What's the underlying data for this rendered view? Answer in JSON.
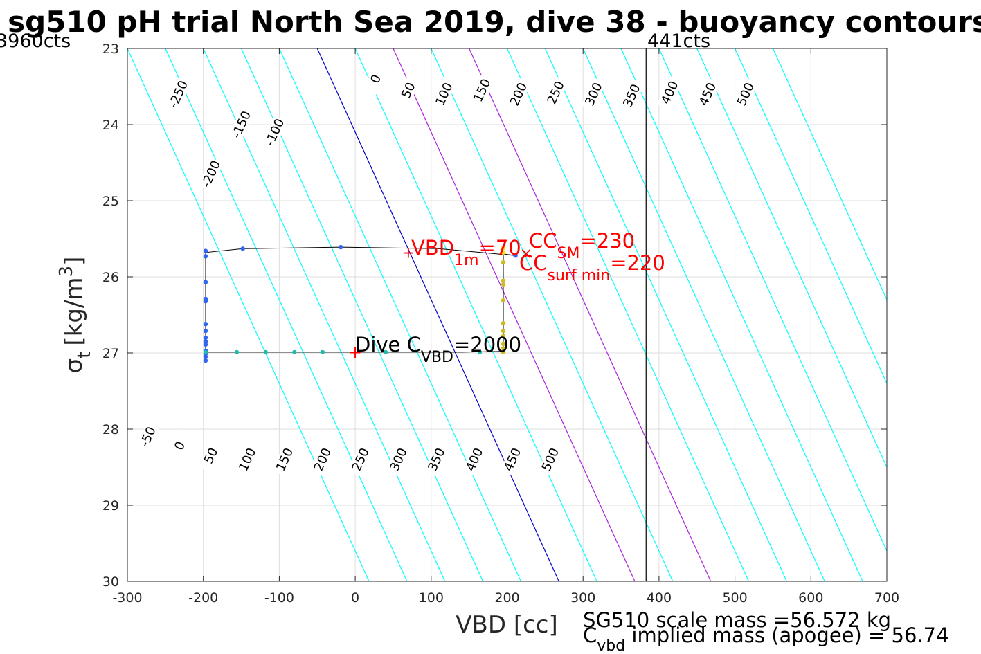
{
  "chart_data": {
    "type": "line",
    "title": "sg510 pH trial North Sea 2019, dive 38 - buoyancy contours",
    "xlabel": "VBD [cc]",
    "ylabel_symbol": "σ",
    "ylabel_sub": "t",
    "ylabel_unit": "[kg/m",
    "ylabel_sup": "3",
    "ylabel_close": "]",
    "xlim": [
      -300,
      700
    ],
    "ylim": [
      23,
      30
    ],
    "y_reversed": true,
    "grid": true,
    "x_ticks": [
      "-300",
      "-200",
      "-100",
      "0",
      "100",
      "200",
      "300",
      "400",
      "500",
      "600",
      "700"
    ],
    "y_ticks": [
      "23",
      "24",
      "25",
      "26",
      "27",
      "28",
      "29",
      "30"
    ],
    "counts_left": "3960cts",
    "counts_right": "441cts",
    "vline_x": 383,
    "contours": [
      {
        "value": -250,
        "x_at_23": -300,
        "color": "#00ffff"
      },
      {
        "value": -200,
        "x_at_23": -250,
        "color": "#00ffff"
      },
      {
        "value": -150,
        "x_at_23": -200,
        "color": "#00ffff"
      },
      {
        "value": -100,
        "x_at_23": -150,
        "color": "#00ffff"
      },
      {
        "value": -50,
        "x_at_23": -100,
        "color": "#00ffff"
      },
      {
        "value": 0,
        "x_at_23": -50,
        "color": "#0000cd"
      },
      {
        "value": 50,
        "x_at_23": 0,
        "color": "#00ffff"
      },
      {
        "value": 100,
        "x_at_23": 50,
        "color": "#aa22dd"
      },
      {
        "value": 150,
        "x_at_23": 100,
        "color": "#00ffff"
      },
      {
        "value": 200,
        "x_at_23": 150,
        "color": "#aa22dd"
      },
      {
        "value": 250,
        "x_at_23": 200,
        "color": "#00ffff"
      },
      {
        "value": 300,
        "x_at_23": 250,
        "color": "#00ffff"
      },
      {
        "value": 350,
        "x_at_23": 300,
        "color": "#00ffff"
      },
      {
        "value": 400,
        "x_at_23": 350,
        "color": "#00ffff"
      },
      {
        "value": 450,
        "x_at_23": 400,
        "color": "#00ffff"
      },
      {
        "value": 500,
        "x_at_23": 450,
        "color": "#00ffff"
      },
      {
        "value": 550,
        "x_at_23": 500,
        "color": "#00ffff"
      },
      {
        "value": 600,
        "x_at_23": 550,
        "color": "#00ffff"
      }
    ],
    "contour_labels": [
      {
        "text": "-250",
        "x": -233,
        "y": 23.6
      },
      {
        "text": "-200",
        "x": -190,
        "y": 24.65
      },
      {
        "text": "-150",
        "x": -150,
        "y": 24.0
      },
      {
        "text": "-100",
        "x": -106,
        "y": 24.1
      },
      {
        "text": "0",
        "x": 27,
        "y": 23.4
      },
      {
        "text": "50",
        "x": 70,
        "y": 23.55
      },
      {
        "text": "100",
        "x": 117,
        "y": 23.6
      },
      {
        "text": "150",
        "x": 167,
        "y": 23.55
      },
      {
        "text": "200",
        "x": 215,
        "y": 23.6
      },
      {
        "text": "250",
        "x": 264,
        "y": 23.58
      },
      {
        "text": "300",
        "x": 314,
        "y": 23.6
      },
      {
        "text": "350",
        "x": 364,
        "y": 23.62
      },
      {
        "text": "400",
        "x": 414,
        "y": 23.58
      },
      {
        "text": "450",
        "x": 464,
        "y": 23.6
      },
      {
        "text": "500",
        "x": 514,
        "y": 23.6
      },
      {
        "text": "-50",
        "x": -273,
        "y": 28.1
      },
      {
        "text": "0",
        "x": -231,
        "y": 28.22
      },
      {
        "text": "50",
        "x": -190,
        "y": 28.35
      },
      {
        "text": "100",
        "x": -142,
        "y": 28.4
      },
      {
        "text": "150",
        "x": -93,
        "y": 28.4
      },
      {
        "text": "200",
        "x": -43,
        "y": 28.4
      },
      {
        "text": "250",
        "x": 7,
        "y": 28.4
      },
      {
        "text": "300",
        "x": 57,
        "y": 28.4
      },
      {
        "text": "350",
        "x": 107,
        "y": 28.4
      },
      {
        "text": "400",
        "x": 157,
        "y": 28.4
      },
      {
        "text": "450",
        "x": 207,
        "y": 28.4
      },
      {
        "text": "500",
        "x": 257,
        "y": 28.4
      }
    ],
    "trajectory": [
      {
        "x": -197,
        "y": 26.99
      },
      {
        "x": -197,
        "y": 26.5
      },
      {
        "x": -197,
        "y": 25.9
      },
      {
        "x": -197,
        "y": 25.68
      },
      {
        "x": -148,
        "y": 25.63
      },
      {
        "x": -19,
        "y": 25.61
      },
      {
        "x": 110,
        "y": 25.63
      },
      {
        "x": 211,
        "y": 25.72
      },
      {
        "x": 195,
        "y": 25.7
      },
      {
        "x": 195,
        "y": 26.1
      },
      {
        "x": 195,
        "y": 26.98
      },
      {
        "x": 140,
        "y": 26.99
      },
      {
        "x": 0,
        "y": 26.99
      },
      {
        "x": -197,
        "y": 26.99
      }
    ],
    "points": [
      {
        "x": -197,
        "y": 25.66,
        "color": "#3366ee"
      },
      {
        "x": -197,
        "y": 25.73,
        "color": "#3366ee"
      },
      {
        "x": -197,
        "y": 26.07,
        "color": "#3366ee"
      },
      {
        "x": -197,
        "y": 26.29,
        "color": "#3366ee"
      },
      {
        "x": -197,
        "y": 26.32,
        "color": "#3366ee"
      },
      {
        "x": -197,
        "y": 26.62,
        "color": "#3366ee"
      },
      {
        "x": -197,
        "y": 26.71,
        "color": "#3366ee"
      },
      {
        "x": -197,
        "y": 26.8,
        "color": "#3366ee"
      },
      {
        "x": -197,
        "y": 26.85,
        "color": "#3366ee"
      },
      {
        "x": -197,
        "y": 26.89,
        "color": "#3366ee"
      },
      {
        "x": -197,
        "y": 26.97,
        "color": "#3366ee"
      },
      {
        "x": -197,
        "y": 27.01,
        "color": "#3366ee"
      },
      {
        "x": -197,
        "y": 27.05,
        "color": "#3366ee"
      },
      {
        "x": -197,
        "y": 27.1,
        "color": "#3366ee"
      },
      {
        "x": -148,
        "y": 25.63,
        "color": "#3366ee"
      },
      {
        "x": -19,
        "y": 25.61,
        "color": "#3366ee"
      },
      {
        "x": 211,
        "y": 25.72,
        "color": "#3366ee"
      },
      {
        "x": -156,
        "y": 26.99,
        "color": "#22bbaa"
      },
      {
        "x": -118,
        "y": 26.99,
        "color": "#22bbaa"
      },
      {
        "x": -80,
        "y": 26.99,
        "color": "#22bbaa"
      },
      {
        "x": -43,
        "y": 26.99,
        "color": "#22bbaa"
      },
      {
        "x": 40,
        "y": 26.99,
        "color": "#22bbaa"
      },
      {
        "x": 164,
        "y": 26.99,
        "color": "#22bbaa"
      },
      {
        "x": -197,
        "y": 26.99,
        "color": "#22bbaa"
      },
      {
        "x": 195,
        "y": 25.62,
        "color": "#ffdd00"
      },
      {
        "x": 195,
        "y": 25.68,
        "color": "#ffdd00"
      },
      {
        "x": 195,
        "y": 25.81,
        "color": "#ccbb22"
      },
      {
        "x": 195,
        "y": 26.05,
        "color": "#ccbb22"
      },
      {
        "x": 195,
        "y": 26.1,
        "color": "#ccbb22"
      },
      {
        "x": 195,
        "y": 26.31,
        "color": "#ccbb22"
      },
      {
        "x": 195,
        "y": 26.61,
        "color": "#ccbb22"
      },
      {
        "x": 195,
        "y": 26.71,
        "color": "#ccbb22"
      },
      {
        "x": 195,
        "y": 26.78,
        "color": "#ccbb22"
      },
      {
        "x": 195,
        "y": 26.88,
        "color": "#ccbb22"
      },
      {
        "x": 195,
        "y": 26.94,
        "color": "#ccbb22"
      },
      {
        "x": 195,
        "y": 26.99,
        "color": "#ccbb22"
      }
    ],
    "annotations": {
      "vbd1m": {
        "plus_x": 70,
        "plus_y": 25.69,
        "main": "VBD",
        "sub": "1m",
        "value": "=70"
      },
      "ccsm": {
        "x": 225,
        "y": 25.7,
        "main": "CC",
        "sub": "SM",
        "value": "=230"
      },
      "ccsurf": {
        "main": "CC",
        "sub": "surf min",
        "value": "=220"
      },
      "dive": {
        "plus_x": 0,
        "plus_y": 26.99,
        "main": "Dive C",
        "sub": "VBD",
        "value": "=2000"
      }
    },
    "mass_line1": "SG510 scale mass =56.572 kg",
    "mass_line2_main": "C",
    "mass_line2_sub": "vbd",
    "mass_line2_rest": " implied mass (apogee) = 56.74"
  }
}
